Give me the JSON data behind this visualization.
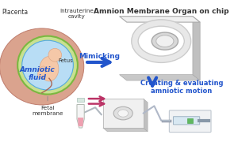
{
  "title_right": "Amnion Membrane Organ on chip",
  "label_placenta": "Placenta",
  "label_intrauterine": "Intrauterine\ncavity",
  "label_fetus": "Fetus",
  "label_amniotic": "Amniotic\nfluid",
  "label_fetal": "Fetal\nmembrane",
  "label_mimicking": "Mimicking",
  "label_creating": "Creating & evaluating\namniotic motion",
  "bg_color": "#ffffff",
  "arrow_blue": "#2255cc",
  "arrow_pink": "#bb3366",
  "text_blue": "#2255cc",
  "text_dark": "#333333",
  "placenta_color": "#d4937a",
  "amniotic_fill": "#b8ddf5",
  "fetus_skin": "#f5c8a8",
  "green_ring": "#6aaa55",
  "chip_top": "#efefef",
  "chip_side": "#d0d0d0",
  "chip_edge": "#bbbbbb",
  "ring_gray": "#cccccc",
  "tube_pink": "#eea0b0",
  "syringe_color": "#d8e8f0"
}
